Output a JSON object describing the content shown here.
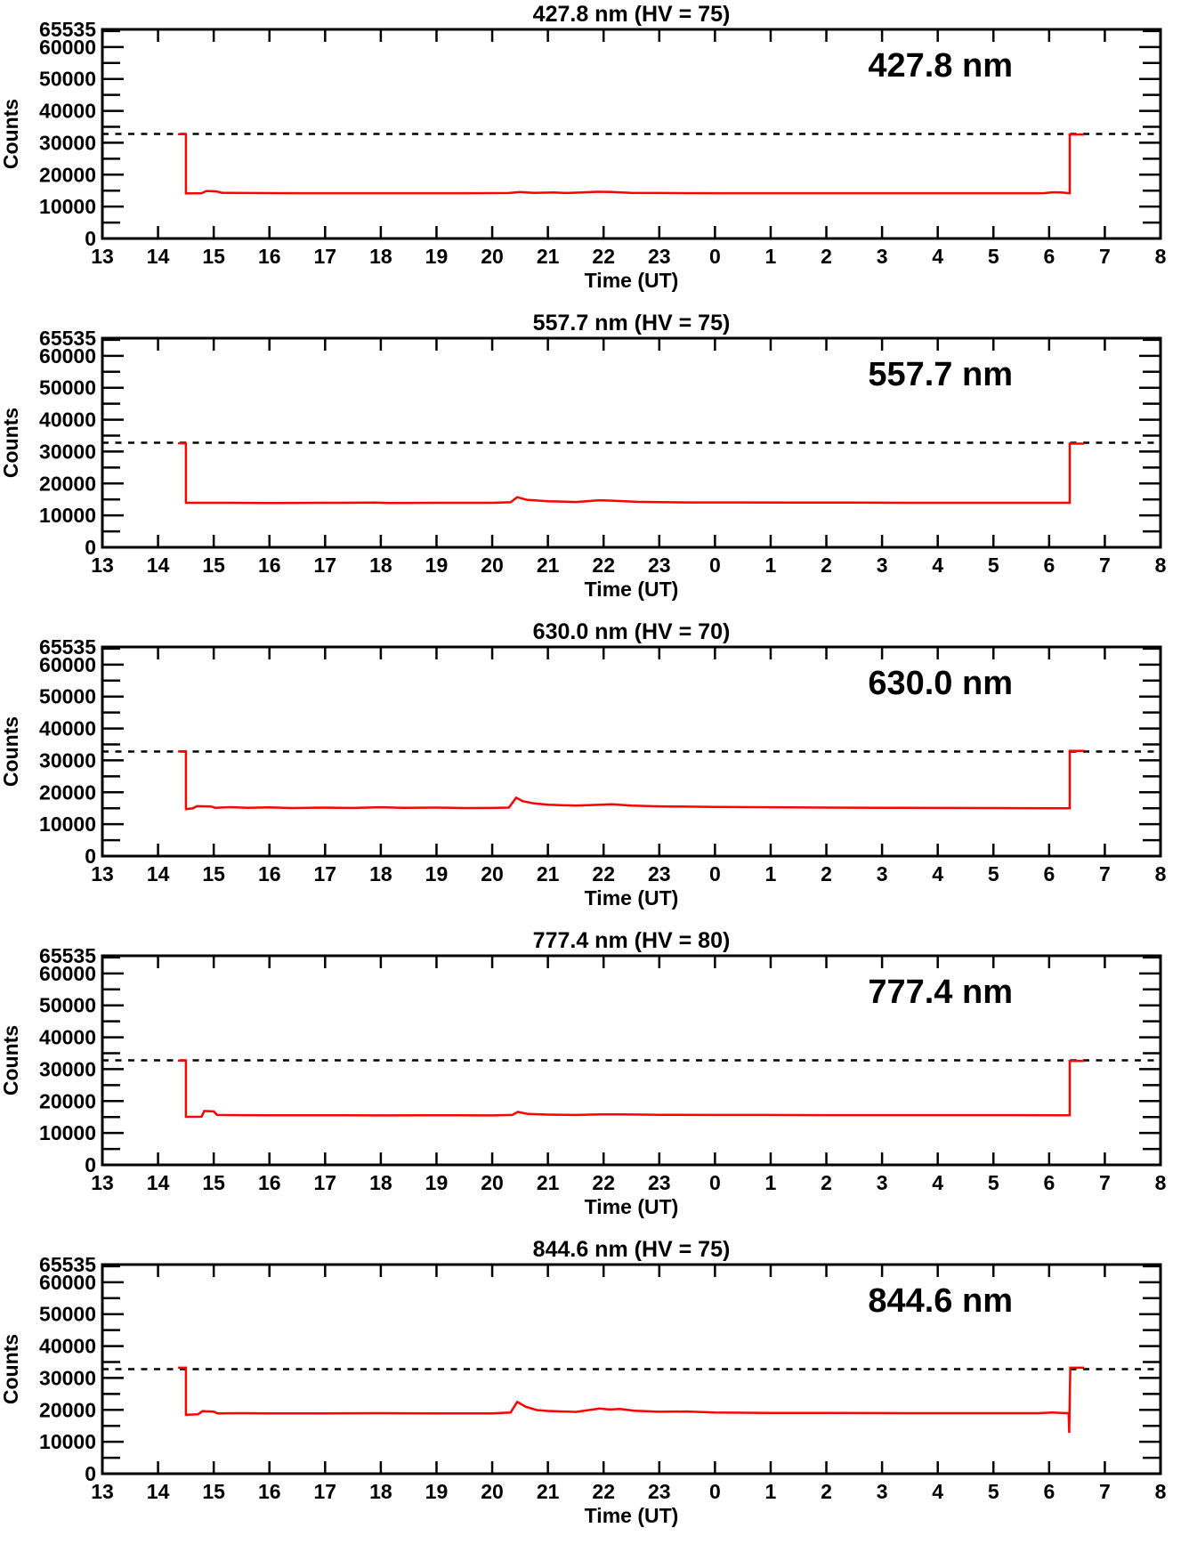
{
  "figure": {
    "background": "#ffffff",
    "axis_color": "#000000",
    "series_color": "#ff0000",
    "saturation_line_style": "dashed"
  },
  "chart_data": [
    {
      "type": "line",
      "title": "427.8 nm (HV = 75)",
      "inplot_label": "427.8 nm",
      "xlabel": "Time (UT)",
      "ylabel": "Counts",
      "x_tick_labels": [
        "13",
        "14",
        "15",
        "16",
        "17",
        "18",
        "19",
        "20",
        "21",
        "22",
        "23",
        "0",
        "1",
        "2",
        "3",
        "4",
        "5",
        "6",
        "7",
        "8"
      ],
      "x_start_hour": 13,
      "x_span_hours": 19,
      "ylim": [
        0,
        65535
      ],
      "y_tick_values": [
        0,
        10000,
        20000,
        30000,
        40000,
        50000,
        60000,
        65535
      ],
      "y_minor_step": 5000,
      "grid": false,
      "dashed_reference_y": 32767,
      "series": [
        {
          "name": "427.8 nm counts",
          "color": "#ff0000",
          "points": [
            [
              14.36,
              32700
            ],
            [
              14.5,
              32700
            ],
            [
              14.5,
              14100
            ],
            [
              14.78,
              14200
            ],
            [
              14.87,
              14900
            ],
            [
              15.05,
              14750
            ],
            [
              15.15,
              14300
            ],
            [
              15.6,
              14250
            ],
            [
              16.5,
              14200
            ],
            [
              17.5,
              14200
            ],
            [
              18.5,
              14200
            ],
            [
              19.5,
              14200
            ],
            [
              20.3,
              14250
            ],
            [
              20.5,
              14550
            ],
            [
              20.75,
              14300
            ],
            [
              21.1,
              14450
            ],
            [
              21.35,
              14250
            ],
            [
              21.9,
              14650
            ],
            [
              22.15,
              14550
            ],
            [
              22.5,
              14300
            ],
            [
              23,
              14250
            ],
            [
              24,
              14200
            ],
            [
              25,
              14200
            ],
            [
              26,
              14200
            ],
            [
              27,
              14200
            ],
            [
              28,
              14200
            ],
            [
              29,
              14200
            ],
            [
              29.9,
              14200
            ],
            [
              30.08,
              14500
            ],
            [
              30.25,
              14400
            ],
            [
              30.34,
              14200
            ],
            [
              30.37,
              14200
            ],
            [
              30.37,
              32600
            ],
            [
              30.63,
              32600
            ]
          ]
        }
      ]
    },
    {
      "type": "line",
      "title": "557.7 nm (HV = 75)",
      "inplot_label": "557.7 nm",
      "xlabel": "Time (UT)",
      "ylabel": "Counts",
      "x_tick_labels": [
        "13",
        "14",
        "15",
        "16",
        "17",
        "18",
        "19",
        "20",
        "21",
        "22",
        "23",
        "0",
        "1",
        "2",
        "3",
        "4",
        "5",
        "6",
        "7",
        "8"
      ],
      "x_start_hour": 13,
      "x_span_hours": 19,
      "ylim": [
        0,
        65535
      ],
      "y_tick_values": [
        0,
        10000,
        20000,
        30000,
        40000,
        50000,
        60000,
        65535
      ],
      "y_minor_step": 5000,
      "grid": false,
      "dashed_reference_y": 32767,
      "series": [
        {
          "name": "557.7 nm counts",
          "color": "#ff0000",
          "points": [
            [
              14.36,
              32600
            ],
            [
              14.5,
              32600
            ],
            [
              14.5,
              13950
            ],
            [
              15,
              13950
            ],
            [
              16,
              13900
            ],
            [
              17,
              13950
            ],
            [
              17.9,
              14000
            ],
            [
              18.15,
              13900
            ],
            [
              19,
              13950
            ],
            [
              20,
              13950
            ],
            [
              20.33,
              14100
            ],
            [
              20.45,
              15700
            ],
            [
              20.62,
              14900
            ],
            [
              21,
              14450
            ],
            [
              21.5,
              14200
            ],
            [
              21.93,
              14750
            ],
            [
              22.15,
              14600
            ],
            [
              22.6,
              14250
            ],
            [
              23,
              14150
            ],
            [
              23.5,
              14050
            ],
            [
              24.5,
              14050
            ],
            [
              25.5,
              14000
            ],
            [
              26.5,
              14000
            ],
            [
              27.5,
              13950
            ],
            [
              28.5,
              13950
            ],
            [
              29.5,
              13950
            ],
            [
              30.37,
              13950
            ],
            [
              30.37,
              32500
            ],
            [
              30.63,
              32500
            ]
          ]
        }
      ]
    },
    {
      "type": "line",
      "title": "630.0 nm (HV = 70)",
      "inplot_label": "630.0 nm",
      "xlabel": "Time (UT)",
      "ylabel": "Counts",
      "x_tick_labels": [
        "13",
        "14",
        "15",
        "16",
        "17",
        "18",
        "19",
        "20",
        "21",
        "22",
        "23",
        "0",
        "1",
        "2",
        "3",
        "4",
        "5",
        "6",
        "7",
        "8"
      ],
      "x_start_hour": 13,
      "x_span_hours": 19,
      "ylim": [
        0,
        65535
      ],
      "y_tick_values": [
        0,
        10000,
        20000,
        30000,
        40000,
        50000,
        60000,
        65535
      ],
      "y_minor_step": 5000,
      "grid": false,
      "dashed_reference_y": 32767,
      "series": [
        {
          "name": "630.0 nm counts",
          "color": "#ff0000",
          "points": [
            [
              14.36,
              32800
            ],
            [
              14.5,
              32800
            ],
            [
              14.5,
              14750
            ],
            [
              14.62,
              14950
            ],
            [
              14.7,
              15650
            ],
            [
              14.95,
              15550
            ],
            [
              15.03,
              15150
            ],
            [
              15.3,
              15350
            ],
            [
              15.6,
              15150
            ],
            [
              16,
              15250
            ],
            [
              16.4,
              15050
            ],
            [
              17,
              15200
            ],
            [
              17.5,
              15100
            ],
            [
              18,
              15300
            ],
            [
              18.4,
              15150
            ],
            [
              19,
              15200
            ],
            [
              19.5,
              15050
            ],
            [
              20,
              15100
            ],
            [
              20.3,
              15200
            ],
            [
              20.43,
              18300
            ],
            [
              20.55,
              17200
            ],
            [
              20.75,
              16500
            ],
            [
              21,
              16100
            ],
            [
              21.5,
              15800
            ],
            [
              21.9,
              16050
            ],
            [
              22.15,
              16250
            ],
            [
              22.5,
              15850
            ],
            [
              23,
              15600
            ],
            [
              23.5,
              15500
            ],
            [
              24,
              15400
            ],
            [
              25,
              15300
            ],
            [
              26,
              15200
            ],
            [
              27,
              15150
            ],
            [
              28,
              15100
            ],
            [
              29,
              15050
            ],
            [
              30,
              15000
            ],
            [
              30.37,
              15000
            ],
            [
              30.37,
              33000
            ],
            [
              30.63,
              33000
            ]
          ]
        }
      ]
    },
    {
      "type": "line",
      "title": "777.4 nm (HV = 80)",
      "inplot_label": "777.4 nm",
      "xlabel": "Time (UT)",
      "ylabel": "Counts",
      "x_tick_labels": [
        "13",
        "14",
        "15",
        "16",
        "17",
        "18",
        "19",
        "20",
        "21",
        "22",
        "23",
        "0",
        "1",
        "2",
        "3",
        "4",
        "5",
        "6",
        "7",
        "8"
      ],
      "x_start_hour": 13,
      "x_span_hours": 19,
      "ylim": [
        0,
        65535
      ],
      "y_tick_values": [
        0,
        10000,
        20000,
        30000,
        40000,
        50000,
        60000,
        65535
      ],
      "y_minor_step": 5000,
      "grid": false,
      "dashed_reference_y": 32767,
      "series": [
        {
          "name": "777.4 nm counts",
          "color": "#ff0000",
          "points": [
            [
              14.36,
              32700
            ],
            [
              14.5,
              32700
            ],
            [
              14.5,
              15050
            ],
            [
              14.78,
              15100
            ],
            [
              14.83,
              16900
            ],
            [
              15.0,
              16750
            ],
            [
              15.06,
              15650
            ],
            [
              15.5,
              15600
            ],
            [
              16,
              15550
            ],
            [
              17,
              15550
            ],
            [
              18,
              15500
            ],
            [
              19,
              15550
            ],
            [
              20,
              15500
            ],
            [
              20.36,
              15650
            ],
            [
              20.46,
              16600
            ],
            [
              20.65,
              15950
            ],
            [
              21,
              15750
            ],
            [
              21.5,
              15650
            ],
            [
              21.95,
              15850
            ],
            [
              22.3,
              15800
            ],
            [
              22.7,
              15750
            ],
            [
              23,
              15700
            ],
            [
              24,
              15650
            ],
            [
              25,
              15650
            ],
            [
              26,
              15600
            ],
            [
              27,
              15600
            ],
            [
              28,
              15600
            ],
            [
              29,
              15600
            ],
            [
              30,
              15550
            ],
            [
              30.37,
              15550
            ],
            [
              30.37,
              32600
            ],
            [
              30.63,
              32600
            ]
          ]
        }
      ]
    },
    {
      "type": "line",
      "title": "844.6 nm (HV = 75)",
      "inplot_label": "844.6 nm",
      "xlabel": "Time (UT)",
      "ylabel": "Counts",
      "x_tick_labels": [
        "13",
        "14",
        "15",
        "16",
        "17",
        "18",
        "19",
        "20",
        "21",
        "22",
        "23",
        "0",
        "1",
        "2",
        "3",
        "4",
        "5",
        "6",
        "7",
        "8"
      ],
      "x_start_hour": 13,
      "x_span_hours": 19,
      "ylim": [
        0,
        65535
      ],
      "y_tick_values": [
        0,
        10000,
        20000,
        30000,
        40000,
        50000,
        60000,
        65535
      ],
      "y_minor_step": 5000,
      "grid": false,
      "dashed_reference_y": 32767,
      "series": [
        {
          "name": "844.6 nm counts",
          "color": "#ff0000",
          "points": [
            [
              14.36,
              33200
            ],
            [
              14.5,
              33200
            ],
            [
              14.5,
              18450
            ],
            [
              14.72,
              18600
            ],
            [
              14.8,
              19600
            ],
            [
              15.0,
              19450
            ],
            [
              15.07,
              18900
            ],
            [
              15.5,
              18950
            ],
            [
              16,
              18900
            ],
            [
              17,
              18900
            ],
            [
              18,
              18950
            ],
            [
              19,
              18900
            ],
            [
              20,
              18900
            ],
            [
              20.33,
              19150
            ],
            [
              20.45,
              22500
            ],
            [
              20.6,
              21000
            ],
            [
              20.8,
              19950
            ],
            [
              21,
              19650
            ],
            [
              21.5,
              19350
            ],
            [
              21.93,
              20400
            ],
            [
              22.1,
              20100
            ],
            [
              22.3,
              20300
            ],
            [
              22.55,
              19750
            ],
            [
              23,
              19400
            ],
            [
              23.5,
              19500
            ],
            [
              24,
              19200
            ],
            [
              25,
              19050
            ],
            [
              26,
              19050
            ],
            [
              27,
              19000
            ],
            [
              28,
              18950
            ],
            [
              29,
              18950
            ],
            [
              29.8,
              18950
            ],
            [
              30.05,
              19150
            ],
            [
              30.28,
              19000
            ],
            [
              30.35,
              19000
            ],
            [
              30.36,
              12800
            ],
            [
              30.38,
              33200
            ],
            [
              30.63,
              33200
            ]
          ]
        }
      ]
    }
  ]
}
